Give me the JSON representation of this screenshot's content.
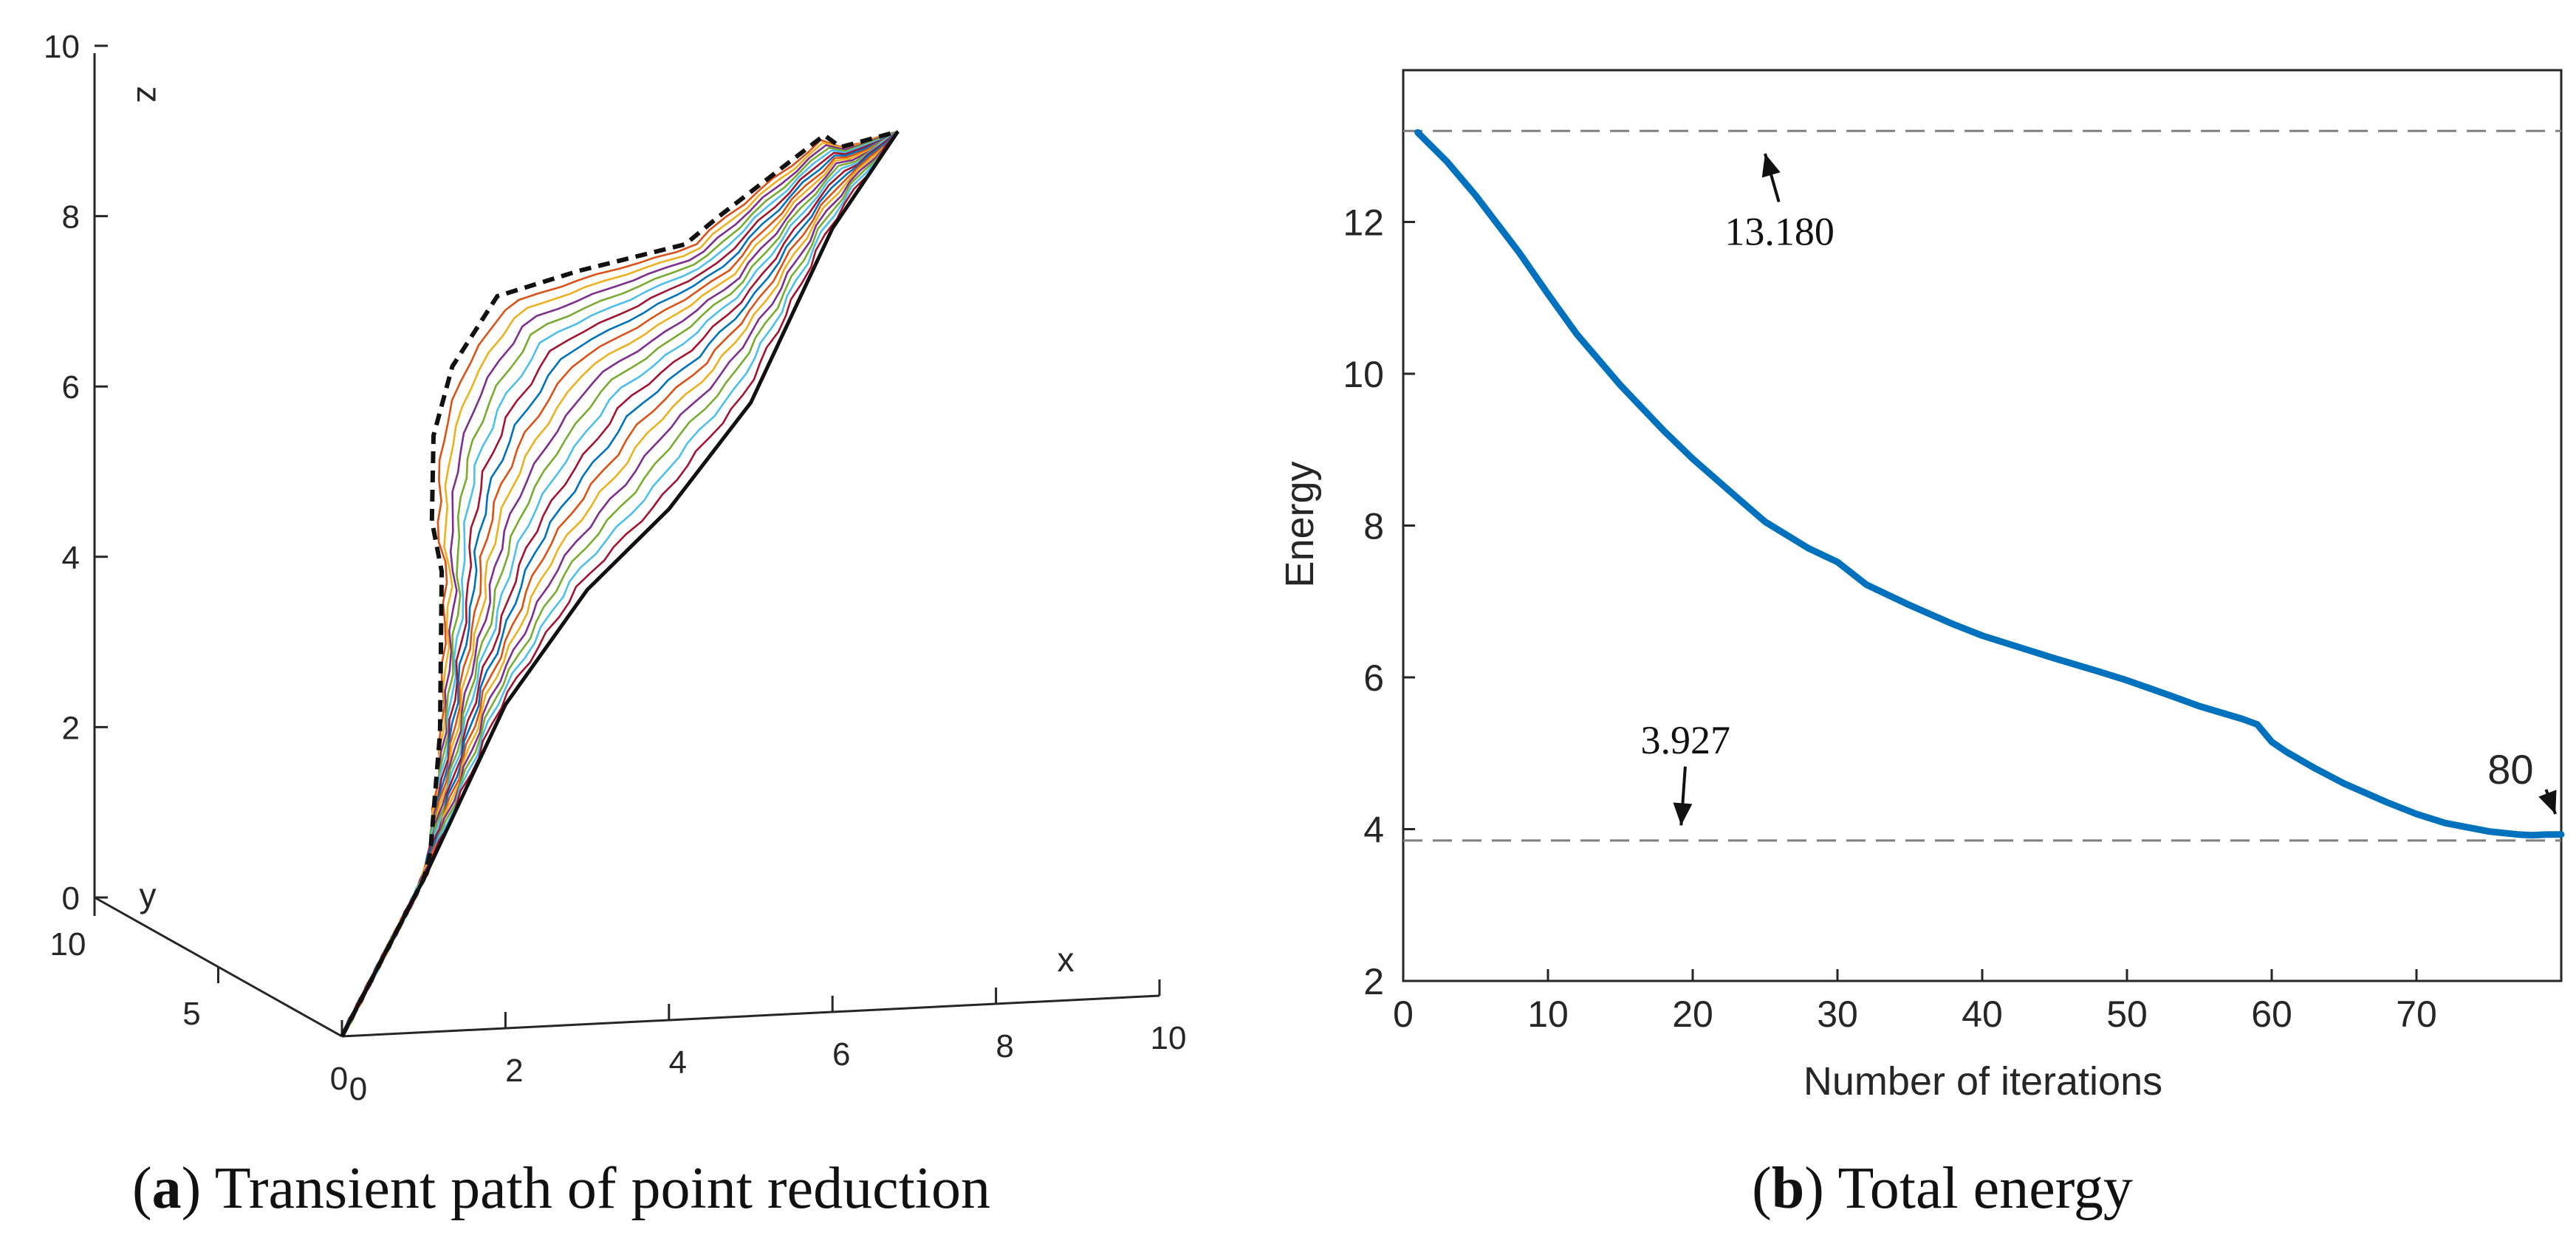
{
  "figure": {
    "panel_a": {
      "letter": "a",
      "caption": "Transient path of point reduction"
    },
    "panel_b": {
      "letter": "b",
      "caption": "Total energy"
    }
  },
  "chart_data": [
    {
      "id": "panel-a",
      "type": "line",
      "projection": "3d",
      "title": "",
      "axes": {
        "x": {
          "label": "x",
          "range": [
            0,
            10
          ],
          "ticks": [
            0,
            2,
            4,
            6,
            8,
            10
          ]
        },
        "y": {
          "label": "y",
          "range": [
            0,
            10
          ],
          "ticks": [
            0,
            5,
            10
          ]
        },
        "z": {
          "label": "z",
          "range": [
            0,
            10
          ],
          "ticks": [
            0,
            2,
            4,
            6,
            8,
            10
          ]
        }
      },
      "colors": [
        "#0072BD",
        "#D95319",
        "#EDB120",
        "#7E2F8E",
        "#77AC30",
        "#4DBEEE",
        "#A2142F"
      ],
      "paths": {
        "start": {
          "x": 0,
          "y": 0,
          "z": 0
        },
        "end": {
          "x": 6.8,
          "y": 0,
          "z": 10.3
        },
        "initial_path_style": "dashed",
        "count_intermediate": 20,
        "initial": [
          [
            0,
            0
          ],
          [
            1.0,
            1.8
          ],
          [
            1.08,
            2.1
          ],
          [
            1.2,
            3.5
          ],
          [
            1.22,
            5.4
          ],
          [
            1.1,
            6.0
          ],
          [
            1.12,
            7.0
          ],
          [
            1.35,
            7.8
          ],
          [
            1.9,
            8.6
          ],
          [
            2.9,
            8.85
          ],
          [
            4.2,
            9.1
          ],
          [
            4.6,
            9.4
          ],
          [
            5.9,
            10.3
          ],
          [
            6.1,
            10.15
          ],
          [
            6.8,
            10.3
          ]
        ],
        "final": [
          [
            0,
            0
          ],
          [
            1.0,
            1.8
          ],
          [
            2.0,
            3.8
          ],
          [
            3.0,
            5.1
          ],
          [
            4.0,
            6.0
          ],
          [
            5.0,
            7.2
          ],
          [
            6.0,
            9.2
          ],
          [
            6.8,
            10.3
          ]
        ]
      }
    },
    {
      "id": "panel-b",
      "type": "line",
      "title": "",
      "xlabel": "Number of iterations",
      "ylabel": "Energy",
      "xlim": [
        0,
        80
      ],
      "ylim": [
        2,
        14
      ],
      "xticks": [
        0,
        10,
        20,
        30,
        40,
        50,
        60,
        70
      ],
      "yticks": [
        2,
        4,
        6,
        8,
        10,
        12
      ],
      "series": [
        {
          "name": "Total energy",
          "color": "#0072BD",
          "x": [
            1,
            3,
            5,
            8,
            10,
            12,
            15,
            18,
            20,
            23,
            25,
            28,
            30,
            32,
            35,
            38,
            40,
            43,
            45,
            48,
            50,
            53,
            55,
            58,
            59,
            60,
            61,
            63,
            65,
            68,
            70,
            72,
            75,
            77,
            78,
            79,
            80
          ],
          "y": [
            13.18,
            12.8,
            12.35,
            11.6,
            11.05,
            10.52,
            9.85,
            9.25,
            8.88,
            8.38,
            8.05,
            7.7,
            7.52,
            7.22,
            6.95,
            6.7,
            6.55,
            6.37,
            6.25,
            6.08,
            5.96,
            5.76,
            5.62,
            5.45,
            5.38,
            5.15,
            5.02,
            4.8,
            4.6,
            4.35,
            4.2,
            4.08,
            3.97,
            3.93,
            3.92,
            3.93,
            3.93
          ]
        }
      ],
      "reference_lines": [
        {
          "y": 13.2
        },
        {
          "y": 3.85
        }
      ],
      "annotations": [
        {
          "text": "13.180",
          "x": 26,
          "y": 11.7,
          "arrow_to_x": 25,
          "arrow_to_y": 12.9
        },
        {
          "text": "3.927",
          "x": 19.5,
          "y": 5.0,
          "arrow_to_x": 19.2,
          "arrow_to_y": 4.05
        },
        {
          "text": "80",
          "x": 76.5,
          "y": 4.6,
          "arrow_to_x": 79.6,
          "arrow_to_y": 4.2
        }
      ]
    }
  ]
}
